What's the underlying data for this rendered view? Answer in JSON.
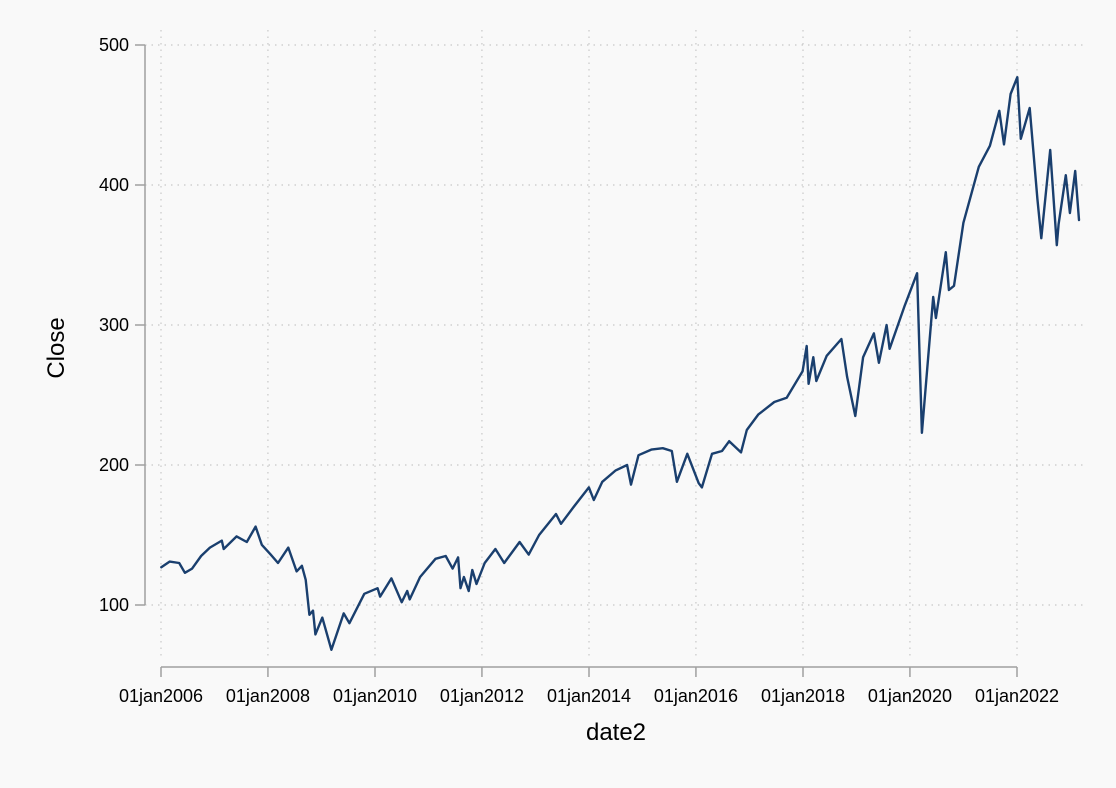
{
  "chart_data": {
    "type": "line",
    "title": "",
    "xlabel": "date2",
    "ylabel": "Close",
    "xlim": [
      "2006-01-03",
      "2023-02-28"
    ],
    "ylim": [
      50,
      500
    ],
    "yticks": [
      100,
      200,
      300,
      400,
      500
    ],
    "xticks": [
      "01jan2006",
      "01jan2008",
      "01jan2010",
      "01jan2012",
      "01jan2014",
      "01jan2016",
      "01jan2018",
      "01jan2020",
      "01jan2022"
    ],
    "grid": "dotted",
    "colors": {
      "line": "#1a3f6e",
      "grid": "#c8c8c8",
      "axis": "#a0a0a0",
      "background": "#f9f9f9"
    },
    "series": [
      {
        "x": [
          "2006-01-03",
          "2006-03-01",
          "2006-05-05",
          "2006-06-13",
          "2006-08-01",
          "2006-10-02",
          "2006-12-01",
          "2007-02-20",
          "2007-03-05",
          "2007-06-01",
          "2007-08-10",
          "2007-10-09",
          "2007-11-20",
          "2008-01-20",
          "2008-03-10",
          "2008-05-19",
          "2008-07-15",
          "2008-08-20",
          "2008-09-15",
          "2008-10-10",
          "2008-11-04",
          "2008-11-20",
          "2009-01-06",
          "2009-03-09",
          "2009-06-01",
          "2009-07-10",
          "2009-10-20",
          "2010-01-19",
          "2010-02-05",
          "2010-04-23",
          "2010-07-02",
          "2010-08-09",
          "2010-08-26",
          "2010-11-05",
          "2011-02-18",
          "2011-04-29",
          "2011-06-15",
          "2011-07-22",
          "2011-08-08",
          "2011-08-31",
          "2011-10-03",
          "2011-10-27",
          "2011-11-25",
          "2012-01-20",
          "2012-04-02",
          "2012-06-01",
          "2012-09-14",
          "2012-11-15",
          "2013-01-25",
          "2013-05-21",
          "2013-06-24",
          "2013-09-18",
          "2013-12-31",
          "2014-02-03",
          "2014-04-02",
          "2014-06-30",
          "2014-09-18",
          "2014-10-15",
          "2014-12-05",
          "2015-03-02",
          "2015-05-20",
          "2015-07-20",
          "2015-08-24",
          "2015-11-03",
          "2016-01-20",
          "2016-02-11",
          "2016-04-20",
          "2016-06-27",
          "2016-08-15",
          "2016-11-04",
          "2016-12-13",
          "2017-03-01",
          "2017-06-19",
          "2017-09-12",
          "2017-12-29",
          "2018-01-26",
          "2018-02-08",
          "2018-03-12",
          "2018-04-02",
          "2018-06-12",
          "2018-09-20",
          "2018-10-29",
          "2018-12-24",
          "2019-02-15",
          "2019-04-30",
          "2019-06-03",
          "2019-07-26",
          "2019-08-15",
          "2019-11-27",
          "2020-02-19",
          "2020-03-23",
          "2020-06-08",
          "2020-06-26",
          "2020-09-02",
          "2020-09-23",
          "2020-10-28",
          "2020-12-31",
          "2021-04-15",
          "2021-06-30",
          "2021-09-02",
          "2021-10-04",
          "2021-11-18",
          "2022-01-03",
          "2022-01-27",
          "2022-03-29",
          "2022-05-20",
          "2022-06-16",
          "2022-08-16",
          "2022-09-30",
          "2022-10-12",
          "2022-11-30",
          "2022-12-28",
          "2023-02-02",
          "2023-02-28"
        ],
        "y": [
          127,
          131,
          130,
          123,
          126,
          135,
          141,
          146,
          140,
          149,
          145,
          156,
          143,
          136,
          130,
          141,
          124,
          128,
          118,
          93,
          96,
          79,
          91,
          68,
          94,
          87,
          108,
          112,
          106,
          119,
          102,
          110,
          104,
          120,
          133,
          135,
          126,
          134,
          112,
          120,
          110,
          125,
          115,
          130,
          140,
          130,
          145,
          136,
          150,
          165,
          158,
          170,
          184,
          175,
          188,
          196,
          200,
          186,
          207,
          211,
          212,
          210,
          188,
          208,
          187,
          184,
          208,
          210,
          217,
          209,
          225,
          236,
          245,
          248,
          267,
          285,
          258,
          277,
          260,
          278,
          290,
          263,
          235,
          277,
          294,
          273,
          300,
          283,
          314,
          337,
          223,
          320,
          305,
          352,
          325,
          328,
          373,
          413,
          428,
          453,
          429,
          465,
          477,
          433,
          455,
          390,
          362,
          425,
          357,
          372,
          407,
          380,
          410,
          375
        ]
      }
    ]
  }
}
